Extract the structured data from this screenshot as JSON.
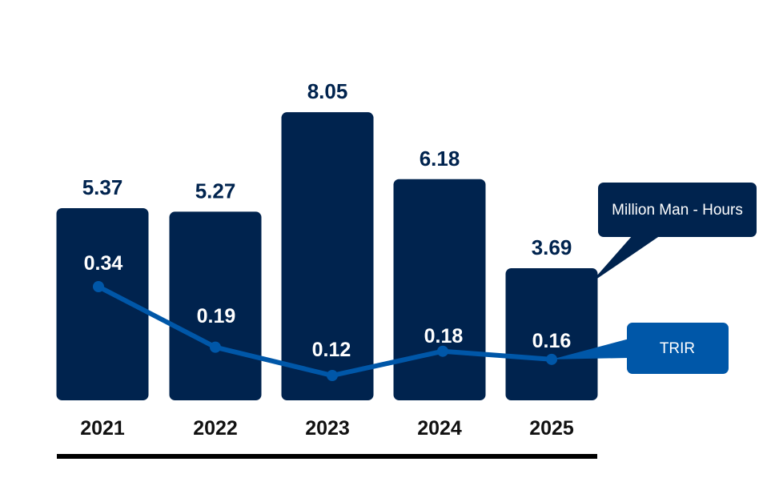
{
  "chart_data": {
    "type": "bar",
    "categories": [
      "2021",
      "2022",
      "2023",
      "2024",
      "2025"
    ],
    "series": [
      {
        "name": "Million Man - Hours",
        "kind": "bar",
        "values": [
          5.37,
          5.27,
          8.05,
          6.18,
          3.69
        ]
      },
      {
        "name": "TRIR",
        "kind": "line",
        "values": [
          0.34,
          0.19,
          0.12,
          0.18,
          0.16
        ]
      }
    ],
    "value_labels": {
      "bars": [
        "5.37",
        "5.27",
        "8.05",
        "6.18",
        "3.69"
      ],
      "line": [
        "0.34",
        "0.19",
        "0.12",
        "0.18",
        "0.16"
      ]
    },
    "legend": {
      "bar_callout": "Million Man - Hours",
      "line_callout": "TRIR"
    },
    "title": "",
    "xlabel": "",
    "ylabel": "",
    "ylim": [
      0,
      9.5
    ],
    "line_ylim": [
      0.05,
      0.4
    ],
    "grid": false
  },
  "colors": {
    "bar": "#00234e",
    "line": "#0057a8",
    "bar_label": "#00234e",
    "axis": "#000000",
    "trir_box": "#0057a8"
  }
}
